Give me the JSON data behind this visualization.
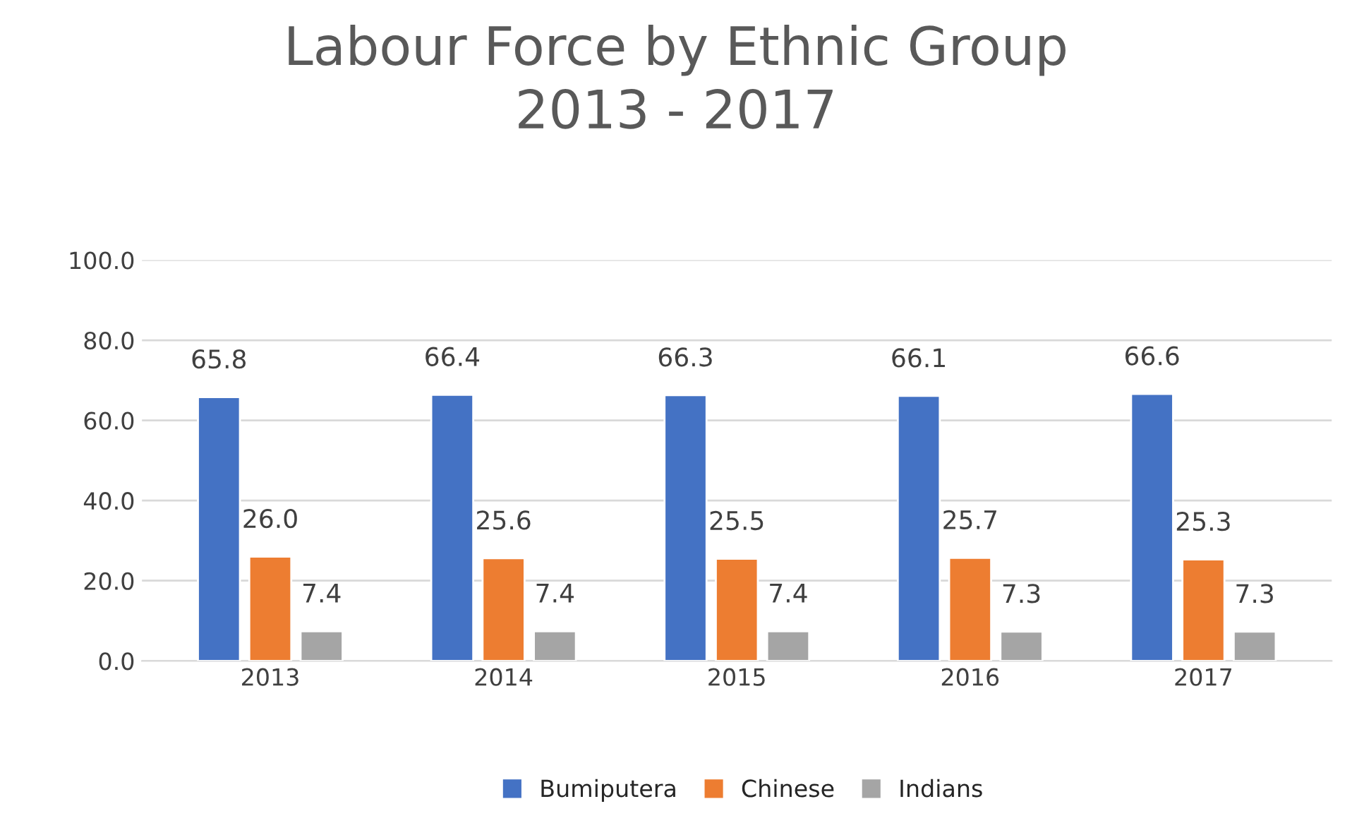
{
  "chart_data": {
    "type": "bar",
    "title": "Labour Force by Ethnic Group\n2013 - 2017",
    "categories": [
      "2013",
      "2014",
      "2015",
      "2016",
      "2017"
    ],
    "series": [
      {
        "name": "Bumiputera",
        "color": "#4472c4",
        "values": [
          65.8,
          66.4,
          66.3,
          66.1,
          66.6
        ],
        "value_labels": [
          "65.8",
          "66.4",
          "66.3",
          "66.1",
          "66.6"
        ]
      },
      {
        "name": "Chinese",
        "color": "#ed7d31",
        "values": [
          26.0,
          25.6,
          25.5,
          25.7,
          25.3
        ],
        "value_labels": [
          "26.0",
          "25.6",
          "25.5",
          "25.7",
          "25.3"
        ]
      },
      {
        "name": "Indians",
        "color": "#a5a5a5",
        "values": [
          7.4,
          7.4,
          7.4,
          7.3,
          7.3
        ],
        "value_labels": [
          "7.4",
          "7.4",
          "7.4",
          "7.3",
          "7.3"
        ]
      }
    ],
    "ylim": [
      0,
      100
    ],
    "yticks": [
      {
        "value": 0,
        "label": "0.0"
      },
      {
        "value": 20,
        "label": "20.0"
      },
      {
        "value": 40,
        "label": "40.0"
      },
      {
        "value": 60,
        "label": "60.0"
      },
      {
        "value": 80,
        "label": "80.0"
      },
      {
        "value": 100,
        "label": "100.0"
      }
    ],
    "grid": "y",
    "legend": "bottom"
  }
}
